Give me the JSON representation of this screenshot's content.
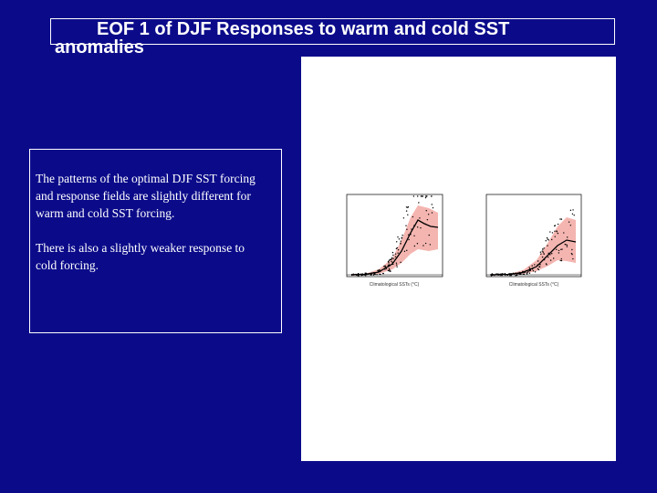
{
  "title": {
    "line1": "EOF 1  of DJF Responses to warm and cold SST",
    "line2": "anomalies"
  },
  "text_box": {
    "paragraphs": [
      "The patterns of the optimal DJF SST forcing and response fields are slightly different for warm and cold SST forcing.",
      "There is also a slightly weaker response to cold forcing."
    ]
  },
  "figure": {
    "panels": [
      {
        "x_label": "Climatological SSTs (°C)"
      },
      {
        "x_label": "Climatological SSTs (°C)"
      }
    ]
  }
}
